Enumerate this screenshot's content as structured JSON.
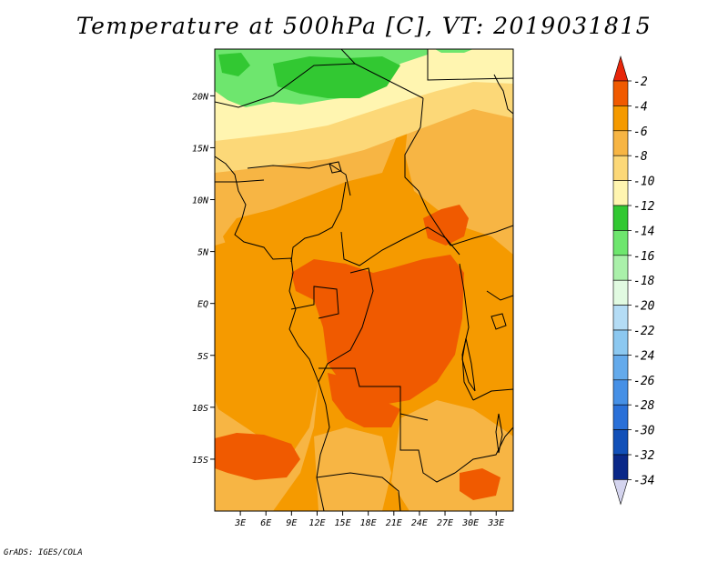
{
  "title": "Temperature at 500hPa [C], VT: 2019031815",
  "credit": "GrADS: IGES/COLA",
  "map": {
    "lon_range": [
      0,
      35
    ],
    "lat_range": [
      -20,
      24.5
    ],
    "lon_ticks": [
      "3E",
      "6E",
      "9E",
      "12E",
      "15E",
      "18E",
      "21E",
      "24E",
      "27E",
      "30E",
      "33E"
    ],
    "lat_ticks": [
      "20N",
      "15N",
      "10N",
      "5N",
      "EQ",
      "5S",
      "10S",
      "15S"
    ]
  },
  "colorbar": {
    "labels": [
      "-2",
      "-4",
      "-6",
      "-8",
      "-10",
      "-12",
      "-14",
      "-16",
      "-18",
      "-20",
      "-22",
      "-24",
      "-26",
      "-28",
      "-30",
      "-32",
      "-34"
    ],
    "colors": {
      "top_arrow": "#e8260a",
      "bins": [
        "#f05a00",
        "#f59a00",
        "#f7b544",
        "#fcd878",
        "#fff5b0",
        "#32c832",
        "#6ee66e",
        "#aaf0aa",
        "#e1fae1",
        "#b4dcf5",
        "#8cc8f0",
        "#64aaeb",
        "#4690e6",
        "#2a70d8",
        "#1250b8",
        "#0a2888"
      ],
      "bottom_arrow": "#d4d4ee"
    }
  },
  "field_colors": {
    "orange_dark": "#f05a00",
    "orange": "#f59a00",
    "light_orange": "#f7b544",
    "pale_yellow": "#fcd878",
    "cream": "#fff5b0",
    "green": "#32c832",
    "light_green": "#6ee66e"
  }
}
